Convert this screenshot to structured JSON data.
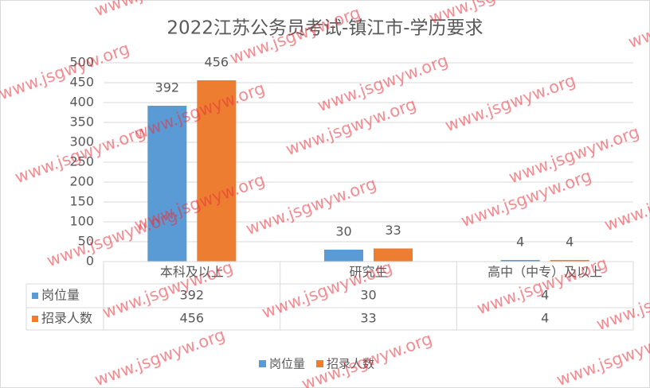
{
  "chart_data": {
    "type": "bar",
    "title": "2022江苏公务员考试-镇江市-学历要求",
    "categories": [
      "本科及以上",
      "研究生",
      "高中（中专）及以上"
    ],
    "series": [
      {
        "name": "岗位量",
        "color": "#5b9bd5",
        "values": [
          392,
          30,
          4
        ]
      },
      {
        "name": "招录人数",
        "color": "#ed7d31",
        "values": [
          456,
          33,
          4
        ]
      }
    ],
    "ylim": [
      0,
      500
    ],
    "yticks": [
      0,
      50,
      100,
      150,
      200,
      250,
      300,
      350,
      400,
      450,
      500
    ],
    "grid": true,
    "data_table": true,
    "legend": "bottom",
    "watermark": "www.jsgwyw.org"
  }
}
